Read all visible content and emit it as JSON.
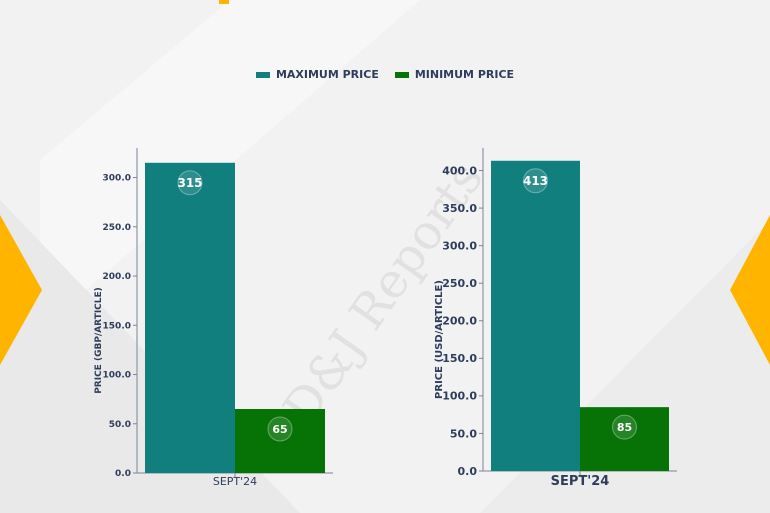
{
  "legend": {
    "max_label": "MAXIMUM PRICE",
    "min_label": "MINIMUM PRICE"
  },
  "colors": {
    "max": "#127f7f",
    "min": "#077307",
    "axis_text": "#2f3d5c",
    "accent": "#ffb400"
  },
  "watermark": "D&J Reports",
  "chart_data": [
    {
      "type": "bar",
      "categories": [
        "SEPT'24"
      ],
      "series": [
        {
          "name": "MAXIMUM PRICE",
          "values": [
            315
          ]
        },
        {
          "name": "MINIMUM PRICE",
          "values": [
            65
          ]
        }
      ],
      "title": "",
      "xlabel": "",
      "ylabel": "PRICE (GBP/ARTICLE)",
      "ylim": [
        0,
        330
      ],
      "yticks": [
        "0.0",
        "50.0",
        "100.0",
        "150.0",
        "200.0",
        "250.0",
        "300.0"
      ],
      "ytick_values": [
        0,
        50,
        100,
        150,
        200,
        250,
        300
      ],
      "data_labels": [
        "315",
        "65"
      ]
    },
    {
      "type": "bar",
      "categories": [
        "SEPT'24"
      ],
      "series": [
        {
          "name": "MAXIMUM PRICE",
          "values": [
            413
          ]
        },
        {
          "name": "MINIMUM PRICE",
          "values": [
            85
          ]
        }
      ],
      "title": "",
      "xlabel": "",
      "ylabel": "PRICE (USD/ARTICLE)",
      "ylim": [
        0,
        430
      ],
      "yticks": [
        "0.0",
        "50.0",
        "100.0",
        "150.0",
        "200.0",
        "250.0",
        "300.0",
        "350.0",
        "400.0"
      ],
      "ytick_values": [
        0,
        50,
        100,
        150,
        200,
        250,
        300,
        350,
        400
      ],
      "data_labels": [
        "413",
        "85"
      ]
    }
  ]
}
